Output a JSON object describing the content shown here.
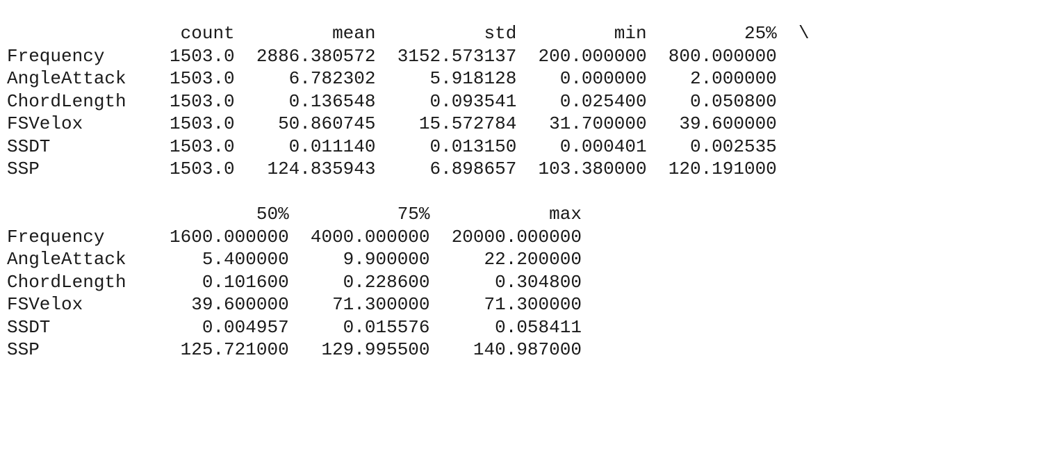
{
  "output": {
    "type": "table",
    "font_family": "Consolas",
    "font_size_pt": 20,
    "text_color": "#1a1a1a",
    "background_color": "#ffffff",
    "continuation_char": "\\",
    "index_labels": [
      "Frequency",
      "AngleAttack",
      "ChordLength",
      "FSVelox",
      "SSDT",
      "SSP"
    ],
    "block1": {
      "index_col_width": 13,
      "columns": [
        {
          "label": "count",
          "width": 8
        },
        {
          "label": "mean",
          "width": 13
        },
        {
          "label": "std",
          "width": 13
        },
        {
          "label": "min",
          "width": 12
        },
        {
          "label": "25%",
          "width": 12
        }
      ],
      "rows": [
        [
          "1503.0",
          "2886.380572",
          "3152.573137",
          "200.000000",
          "800.000000"
        ],
        [
          "1503.0",
          "6.782302",
          "5.918128",
          "0.000000",
          "2.000000"
        ],
        [
          "1503.0",
          "0.136548",
          "0.093541",
          "0.025400",
          "0.050800"
        ],
        [
          "1503.0",
          "50.860745",
          "15.572784",
          "31.700000",
          "39.600000"
        ],
        [
          "1503.0",
          "0.011140",
          "0.013150",
          "0.000401",
          "0.002535"
        ],
        [
          "1503.0",
          "124.835943",
          "6.898657",
          "103.380000",
          "120.191000"
        ]
      ]
    },
    "block2": {
      "index_col_width": 13,
      "columns": [
        {
          "label": "50%",
          "width": 13
        },
        {
          "label": "75%",
          "width": 13
        },
        {
          "label": "max",
          "width": 14
        }
      ],
      "rows": [
        [
          "1600.000000",
          "4000.000000",
          "20000.000000"
        ],
        [
          "5.400000",
          "9.900000",
          "22.200000"
        ],
        [
          "0.101600",
          "0.228600",
          "0.304800"
        ],
        [
          "39.600000",
          "71.300000",
          "71.300000"
        ],
        [
          "0.004957",
          "0.015576",
          "0.058411"
        ],
        [
          "125.721000",
          "129.995500",
          "140.987000"
        ]
      ]
    }
  }
}
